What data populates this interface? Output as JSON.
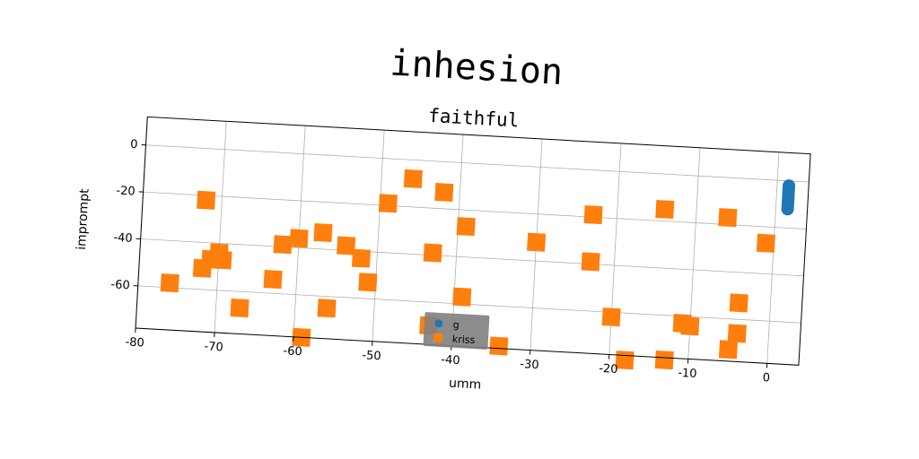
{
  "chart_data": {
    "type": "scatter",
    "title": "inhesion",
    "subtitle": "faithful",
    "xlabel": "umm",
    "ylabel": "imprompt",
    "xlim": [
      -80,
      4
    ],
    "ylim": [
      -78,
      12
    ],
    "xticks": [
      "-80",
      "-70",
      "-60",
      "-50",
      "-40",
      "-30",
      "-20",
      "-10",
      "0"
    ],
    "yticks": [
      "0",
      "-20",
      "-40",
      "-60"
    ],
    "grid": true,
    "legend_position": "lower-center",
    "series": [
      {
        "name": "g",
        "marker": "circle",
        "color": "#1f77b4",
        "points": [
          [
            1.5,
            -2
          ],
          [
            1.5,
            -3
          ],
          [
            1.5,
            -4
          ],
          [
            1.5,
            -5
          ],
          [
            1.5,
            -6
          ],
          [
            1.5,
            -7
          ],
          [
            1.5,
            -8
          ],
          [
            1.5,
            -9
          ],
          [
            1.5,
            -10
          ],
          [
            1.5,
            -11
          ],
          [
            1.5,
            -12
          ]
        ]
      },
      {
        "name": "kriss",
        "marker": "square",
        "color": "#ff7f0e",
        "points": [
          [
            -76,
            -58
          ],
          [
            -72,
            -22
          ],
          [
            -72,
            -51
          ],
          [
            -71,
            -47
          ],
          [
            -70,
            -44
          ],
          [
            -69.5,
            -47
          ],
          [
            -67,
            -67
          ],
          [
            -63,
            -54
          ],
          [
            -62,
            -39
          ],
          [
            -60,
            -36
          ],
          [
            -57,
            -33
          ],
          [
            -56,
            -65
          ],
          [
            -54,
            -38
          ],
          [
            -52,
            -43
          ],
          [
            -51,
            -53
          ],
          [
            -59,
            -78
          ],
          [
            -49,
            -19
          ],
          [
            -46,
            -8
          ],
          [
            -42,
            -13
          ],
          [
            -43,
            -39
          ],
          [
            -43,
            -70
          ],
          [
            -39,
            -27
          ],
          [
            -39,
            -57
          ],
          [
            -34,
            -77
          ],
          [
            -30,
            -32
          ],
          [
            -23,
            -19
          ],
          [
            -23,
            -39
          ],
          [
            -20,
            -62
          ],
          [
            -18,
            -80
          ],
          [
            -14,
            -15
          ],
          [
            -13,
            -79
          ],
          [
            -11,
            -63
          ],
          [
            -10,
            -64
          ],
          [
            -6,
            -17
          ],
          [
            -5,
            -73
          ],
          [
            -4,
            -53
          ],
          [
            -4,
            -66
          ],
          [
            -1,
            -27
          ]
        ]
      }
    ]
  }
}
